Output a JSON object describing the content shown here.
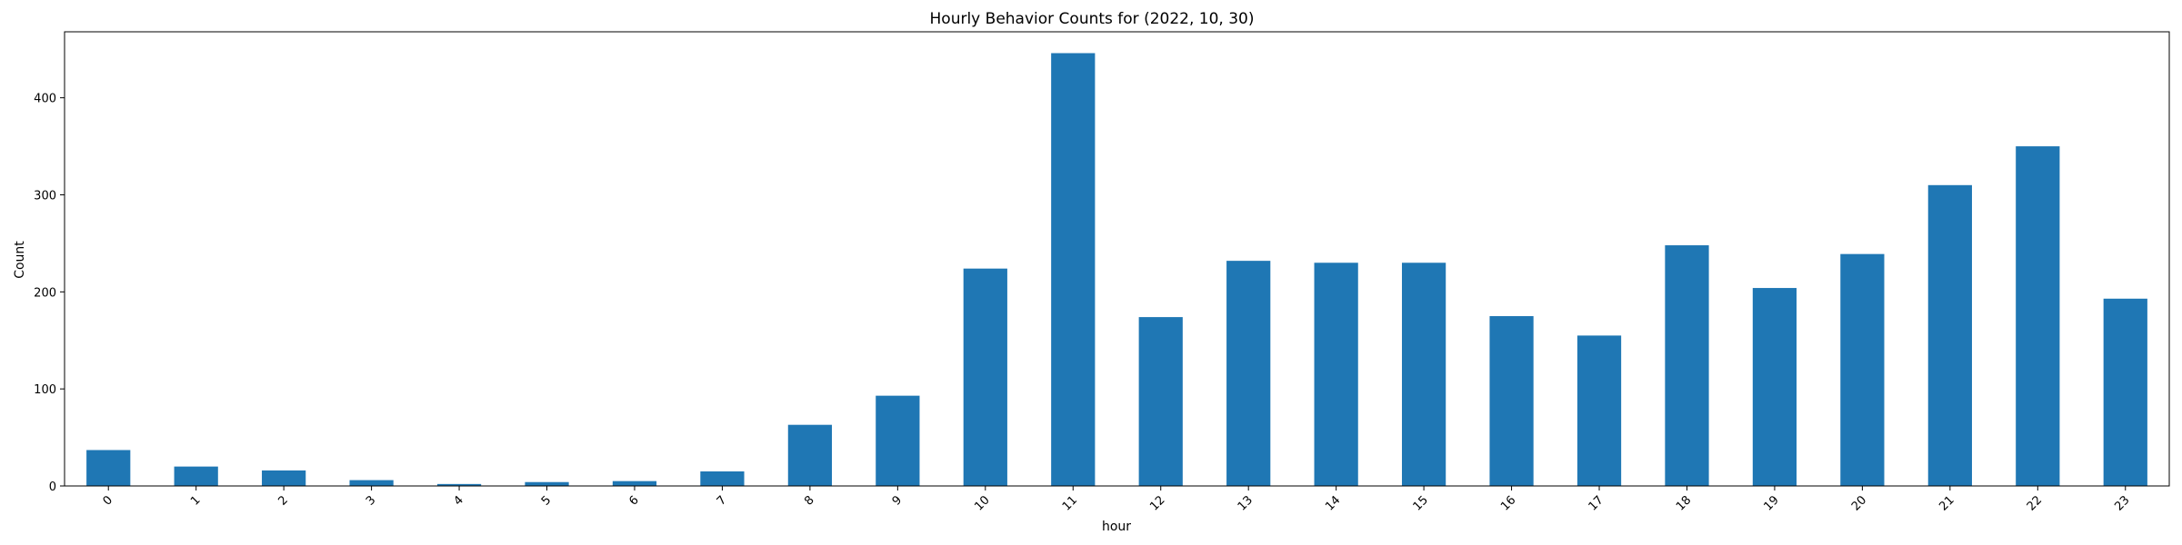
{
  "chart_data": {
    "type": "bar",
    "title": "Hourly Behavior Counts for (2022, 10, 30)",
    "xlabel": "hour",
    "ylabel": "Count",
    "categories": [
      "0",
      "1",
      "2",
      "3",
      "4",
      "5",
      "6",
      "7",
      "8",
      "9",
      "10",
      "11",
      "12",
      "13",
      "14",
      "15",
      "16",
      "17",
      "18",
      "19",
      "20",
      "21",
      "22",
      "23"
    ],
    "values": [
      37,
      20,
      16,
      6,
      2,
      4,
      5,
      15,
      63,
      93,
      224,
      446,
      174,
      232,
      230,
      230,
      175,
      155,
      248,
      204,
      239,
      310,
      350,
      193
    ],
    "ylim": [
      0,
      468
    ],
    "yticks": [
      0,
      100,
      200,
      300,
      400
    ],
    "bar_color": "#1f77b4",
    "grid": false,
    "legend": "none"
  }
}
